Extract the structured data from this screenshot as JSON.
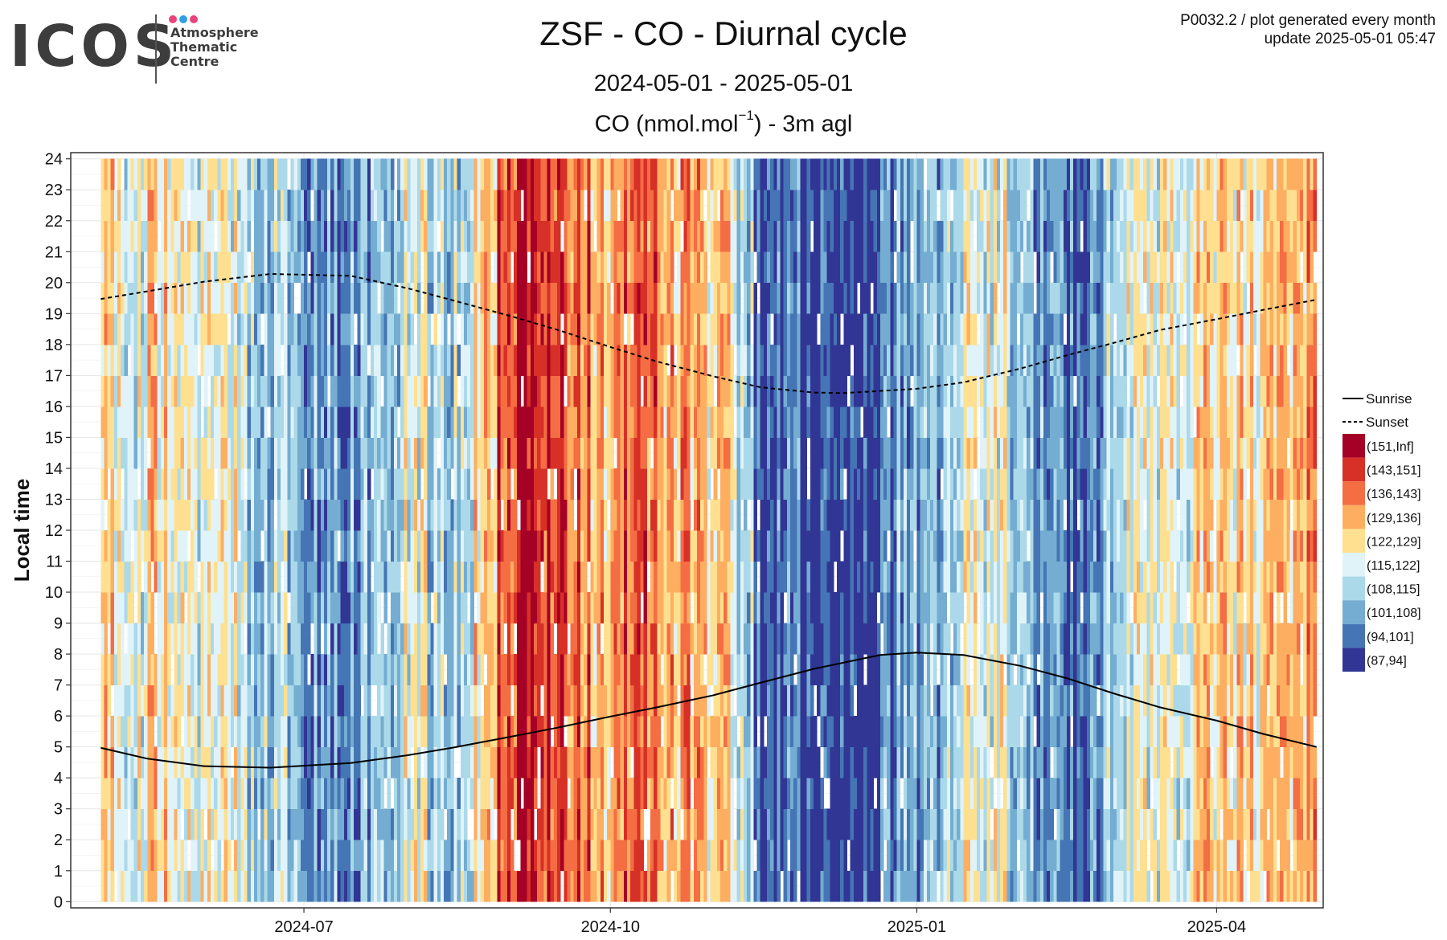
{
  "logo": {
    "wordmark": "ICOS",
    "lines": [
      "Atmosphere",
      "Thematic",
      "Centre"
    ],
    "dot_colors": [
      "#e8457a",
      "#2f9fe3",
      "#e8457a"
    ]
  },
  "header": {
    "title": "ZSF - CO - Diurnal cycle",
    "period": "2024-05-01 - 2025-05-01",
    "subtitle_main": "CO (nmol.mol",
    "subtitle_sup": "−1",
    "subtitle_tail": ") - 3m agl",
    "meta_line1": "P0032.2 / plot generated every month",
    "meta_line2": "update  2025-05-01 05:47"
  },
  "chart_data": {
    "type": "heatmap",
    "title": "ZSF - CO - Diurnal cycle",
    "subtitle": "CO (nmol.mol−1) - 3m agl",
    "xlabel": "",
    "ylabel": "Local time",
    "x_range": [
      "2024-04-22",
      "2025-05-03"
    ],
    "y_range": [
      -0.2,
      24.2
    ],
    "x_ticks": [
      {
        "date": "2024-07-01",
        "label": "2024-07"
      },
      {
        "date": "2024-10-01",
        "label": "2024-10"
      },
      {
        "date": "2025-01-01",
        "label": "2025-01"
      },
      {
        "date": "2025-04-01",
        "label": "2025-04"
      }
    ],
    "y_ticks": [
      "0",
      "1",
      "2",
      "3",
      "4",
      "5",
      "6",
      "7",
      "8",
      "9",
      "10",
      "11",
      "12",
      "13",
      "14",
      "15",
      "16",
      "17",
      "18",
      "19",
      "20",
      "21",
      "22",
      "23",
      "24"
    ],
    "grid": true,
    "legend_position": "right",
    "bins": [
      {
        "label": "(151,Inf]",
        "color": "#a50026"
      },
      {
        "label": "(143,151]",
        "color": "#d73027"
      },
      {
        "label": "(136,143]",
        "color": "#f46d43"
      },
      {
        "label": "(129,136]",
        "color": "#fdae61"
      },
      {
        "label": "(122,129]",
        "color": "#fee090"
      },
      {
        "label": "(115,122]",
        "color": "#e0f3f8"
      },
      {
        "label": "(108,115]",
        "color": "#abd9e9"
      },
      {
        "label": "(101,108]",
        "color": "#74add1"
      },
      {
        "label": "(94,101]",
        "color": "#4575b4"
      },
      {
        "label": "(87,94]",
        "color": "#313695"
      }
    ],
    "daily_mean_bin_by_week": [
      4,
      5,
      4,
      5,
      5,
      5,
      6,
      6,
      7,
      7,
      7,
      7,
      7,
      5,
      6,
      6,
      4,
      1,
      0,
      1,
      2,
      3,
      2,
      2,
      3,
      3,
      4,
      6,
      8,
      8,
      9,
      9,
      9,
      8,
      7,
      7,
      6,
      5,
      5,
      6,
      7,
      8,
      8,
      6,
      5,
      5,
      5,
      4,
      4,
      4,
      3,
      3
    ],
    "lines": [
      {
        "name": "Sunrise",
        "style": "solid",
        "color": "#000000",
        "points": [
          [
            "2024-05-01",
            4.97
          ],
          [
            "2024-05-15",
            4.62
          ],
          [
            "2024-06-01",
            4.38
          ],
          [
            "2024-06-21",
            4.33
          ],
          [
            "2024-07-15",
            4.48
          ],
          [
            "2024-08-01",
            4.73
          ],
          [
            "2024-08-15",
            4.98
          ],
          [
            "2024-09-01",
            5.33
          ],
          [
            "2024-09-15",
            5.62
          ],
          [
            "2024-10-01",
            5.98
          ],
          [
            "2024-10-15",
            6.28
          ],
          [
            "2024-11-01",
            6.67
          ],
          [
            "2024-11-15",
            7.07
          ],
          [
            "2024-12-01",
            7.52
          ],
          [
            "2024-12-21",
            7.97
          ],
          [
            "2025-01-01",
            8.05
          ],
          [
            "2025-01-15",
            7.97
          ],
          [
            "2025-02-01",
            7.62
          ],
          [
            "2025-02-15",
            7.22
          ],
          [
            "2025-03-01",
            6.73
          ],
          [
            "2025-03-15",
            6.28
          ],
          [
            "2025-04-01",
            5.85
          ],
          [
            "2025-04-15",
            5.42
          ],
          [
            "2025-05-01",
            5.0
          ]
        ]
      },
      {
        "name": "Sunset",
        "style": "dashed",
        "color": "#000000",
        "points": [
          [
            "2024-05-01",
            19.47
          ],
          [
            "2024-05-15",
            19.72
          ],
          [
            "2024-06-01",
            20.03
          ],
          [
            "2024-06-21",
            20.28
          ],
          [
            "2024-07-15",
            20.22
          ],
          [
            "2024-08-01",
            19.82
          ],
          [
            "2024-08-15",
            19.42
          ],
          [
            "2024-09-01",
            18.92
          ],
          [
            "2024-09-15",
            18.48
          ],
          [
            "2024-10-01",
            17.92
          ],
          [
            "2024-10-15",
            17.45
          ],
          [
            "2024-11-01",
            16.97
          ],
          [
            "2024-11-15",
            16.62
          ],
          [
            "2024-12-01",
            16.45
          ],
          [
            "2024-12-10",
            16.43
          ],
          [
            "2025-01-01",
            16.57
          ],
          [
            "2025-01-15",
            16.78
          ],
          [
            "2025-02-01",
            17.22
          ],
          [
            "2025-02-15",
            17.65
          ],
          [
            "2025-03-01",
            18.05
          ],
          [
            "2025-03-15",
            18.47
          ],
          [
            "2025-04-01",
            18.82
          ],
          [
            "2025-04-15",
            19.12
          ],
          [
            "2025-05-01",
            19.45
          ]
        ]
      }
    ]
  }
}
